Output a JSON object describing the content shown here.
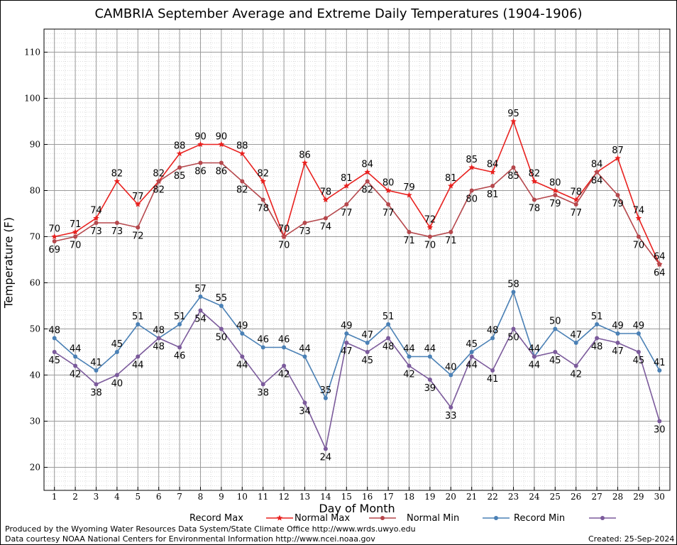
{
  "chart_data": {
    "type": "line",
    "title": "CAMBRIA September Average and Extreme Daily Temperatures (1904-1906)",
    "xlabel": "Day of Month",
    "ylabel": "Temperature (F)",
    "x": [
      1,
      2,
      3,
      4,
      5,
      6,
      7,
      8,
      9,
      10,
      11,
      12,
      13,
      14,
      15,
      16,
      17,
      18,
      19,
      20,
      21,
      22,
      23,
      24,
      25,
      26,
      27,
      28,
      29,
      30
    ],
    "xlim": [
      0.5,
      30.5
    ],
    "ylim": [
      15,
      115
    ],
    "yticks": [
      20,
      30,
      40,
      50,
      60,
      70,
      80,
      90,
      100,
      110
    ],
    "grid": true,
    "legend_position": "bottom",
    "series": [
      {
        "name": "Record Max",
        "color": "#e8201e",
        "marker": "star",
        "values": [
          70,
          71,
          74,
          82,
          77,
          82,
          88,
          90,
          90,
          88,
          82,
          70,
          86,
          78,
          81,
          84,
          80,
          79,
          72,
          81,
          85,
          84,
          95,
          82,
          80,
          78,
          84,
          87,
          74,
          64
        ]
      },
      {
        "name": "Normal Max",
        "color": "#b5474c",
        "marker": "circle",
        "values": [
          69,
          70,
          73,
          73,
          72,
          82,
          85,
          86,
          86,
          82,
          78,
          70,
          73,
          74,
          77,
          82,
          77,
          71,
          70,
          71,
          80,
          81,
          85,
          78,
          79,
          77,
          84,
          79,
          70,
          64
        ]
      },
      {
        "name": "Normal Min",
        "color": "#4a80b5",
        "marker": "circle",
        "values": [
          48,
          44,
          41,
          45,
          51,
          48,
          51,
          57,
          55,
          49,
          46,
          46,
          44,
          35,
          49,
          47,
          51,
          44,
          44,
          40,
          45,
          48,
          58,
          44,
          50,
          47,
          51,
          49,
          49,
          41
        ]
      },
      {
        "name": "Record Min",
        "color": "#7b5a9b",
        "marker": "circle",
        "values": [
          45,
          42,
          38,
          40,
          44,
          48,
          46,
          54,
          50,
          44,
          38,
          42,
          34,
          24,
          47,
          45,
          48,
          42,
          39,
          33,
          44,
          41,
          50,
          44,
          45,
          42,
          48,
          47,
          45,
          30
        ]
      }
    ]
  },
  "footer": {
    "produced_by": "Produced by the Wyoming Water Resources Data System/State Climate Office http://www.wrds.uwyo.edu",
    "courtesy": "Data courtesy NOAA National Centers for Environmental Information http://www.ncei.noaa.gov",
    "created": "Created:  25-Sep-2024"
  }
}
